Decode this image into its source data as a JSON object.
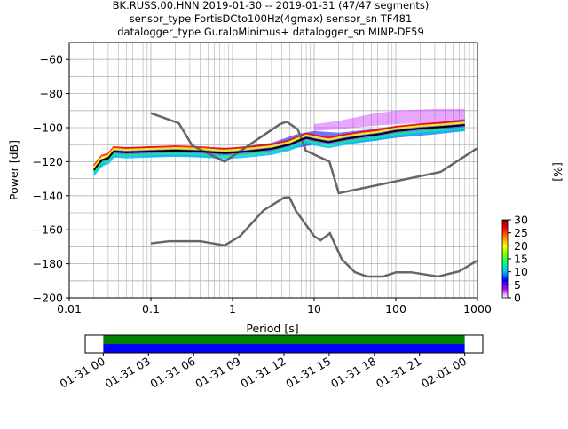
{
  "title": {
    "line1": "BK.RUSS.00.HNN   2019-01-30 -- 2019-01-31  (47/47 segments)",
    "line2": "sensor_type FortisDCto100Hz(4gmax) sensor_sn TF481",
    "line3": "datalogger_type GuralpMinimus+ datalogger_sn MINP-DF59"
  },
  "chart_data": [
    {
      "type": "heatmap",
      "subtype": "probabilistic-power-spectral-density",
      "xlabel": "Period [s]",
      "ylabel": "Power [dB]",
      "xscale": "log",
      "xlim": [
        0.01,
        1000
      ],
      "ylim": [
        -200,
        -50
      ],
      "xticks": [
        "0.01",
        "0.1",
        "1",
        "10",
        "100",
        "1000"
      ],
      "yticks": [
        "−60",
        "−80",
        "−100",
        "−120",
        "−140",
        "−160",
        "−180",
        "−200"
      ],
      "grid": true,
      "noise_models": {
        "high_noise_model": {
          "color": "#666666",
          "x": [
            0.1,
            0.22,
            0.32,
            0.8,
            3.8,
            4.6,
            6.3,
            7.9,
            15.4,
            20,
            354.8,
            1000
          ],
          "y": [
            -91.5,
            -97.4,
            -110.5,
            -120,
            -98,
            -96.5,
            -101,
            -113.5,
            -120,
            -138.5,
            -126,
            -112
          ]
        },
        "low_noise_model": {
          "color": "#666666",
          "x": [
            0.1,
            0.17,
            0.4,
            0.8,
            1.24,
            2.4,
            4.3,
            5.0,
            6.0,
            10.0,
            12.0,
            15.6,
            21.9,
            31.6,
            45.0,
            70.0,
            101.0,
            154.0,
            328.0,
            600.0,
            1000.0
          ],
          "y": [
            -168,
            -166.7,
            -166.7,
            -169.2,
            -163.7,
            -148.6,
            -141.1,
            -141.1,
            -149.0,
            -163.8,
            -166.2,
            -162.1,
            -177.5,
            -185.0,
            -187.5,
            -187.5,
            -185.0,
            -185.0,
            -187.5,
            -184.4,
            -178.0
          ]
        }
      },
      "series": [
        {
          "name": "",
          "color": "#000000",
          "x": [
            0.02,
            0.025,
            0.03,
            0.035,
            0.05,
            0.1,
            0.2,
            0.4,
            0.8,
            1.5,
            3,
            5,
            7,
            8,
            10,
            15,
            25,
            40,
            60,
            100,
            200,
            400,
            700
          ],
          "y": [
            -125,
            -119,
            -118,
            -114,
            -114.5,
            -114,
            -113.5,
            -114,
            -115,
            -114,
            -112.5,
            -110,
            -107,
            -106,
            -107,
            -108.5,
            -106.5,
            -105,
            -104,
            -102,
            -100.5,
            -99.5,
            -98.5
          ]
        }
      ],
      "density_bands": [
        {
          "x": [
            0.02,
            0.03,
            0.035,
            0.1,
            0.3,
            1,
            3,
            6,
            10,
            20,
            50,
            100,
            300,
            700
          ],
          "y_low": [
            -127,
            -120,
            -117,
            -117,
            -117,
            -117,
            -115,
            -112,
            -110,
            -110,
            -108,
            -106,
            -104,
            -102
          ],
          "y_high": [
            -123,
            -116,
            -112,
            -111,
            -112,
            -112,
            -109,
            -104,
            -102,
            -103,
            -101,
            -99,
            -97,
            -95
          ]
        },
        {
          "x": [
            10,
            20,
            50,
            100,
            300,
            700
          ],
          "y_low": [
            -102,
            -101,
            -99,
            -98,
            -97,
            -96
          ],
          "y_high": [
            -98,
            -96,
            -92,
            -90,
            -89,
            -89
          ]
        }
      ],
      "colorbar": {
        "label": "[%]",
        "range": [
          0,
          30
        ],
        "ticks": [
          "0",
          "5",
          "10",
          "15",
          "20",
          "25",
          "30"
        ],
        "colors": [
          "#ffffff",
          "#c000ff",
          "#0000ff",
          "#00c0ff",
          "#00ff80",
          "#80ff00",
          "#ffff00",
          "#ff8000",
          "#ff0000",
          "#800000"
        ]
      }
    },
    {
      "type": "timeline",
      "xticks": [
        "01-31 00",
        "01-31 03",
        "01-31 06",
        "01-31 09",
        "01-31 12",
        "01-31 15",
        "01-31 18",
        "01-31 21",
        "02-01 00"
      ],
      "xlim_hours": [
        -1.2,
        25.2
      ],
      "bars": [
        {
          "name": "",
          "color": "#008000",
          "start_hour": 0,
          "end_hour": 24
        },
        {
          "name": "",
          "color": "#0000ff",
          "start_hour": 0,
          "end_hour": 24
        }
      ]
    }
  ]
}
